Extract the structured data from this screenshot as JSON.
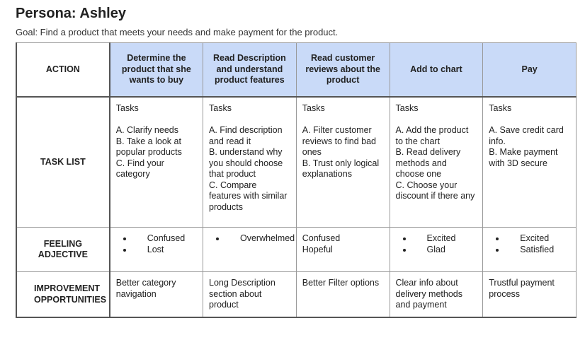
{
  "title": "Persona: Ashley",
  "goal": "Goal: Find a product that meets your needs and make payment for the product.",
  "table": {
    "header": [
      "ACTION",
      "Determine the product that she wants to buy",
      "Read Description and understand product features",
      "Read customer reviews about the product",
      "Add to chart",
      "Pay"
    ],
    "rows": [
      {
        "label": "TASK LIST",
        "cells": [
          {
            "heading": "Tasks",
            "items": [
              "A. Clarify needs",
              "B. Take a look at popular products",
              "C. Find your category"
            ]
          },
          {
            "heading": "Tasks",
            "items": [
              "A. Find description and read it",
              "B. understand why you should choose that product",
              "C. Compare features with similar products"
            ]
          },
          {
            "heading": "Tasks",
            "items": [
              "A. Filter customer reviews to find bad ones",
              "B. Trust only logical explanations"
            ]
          },
          {
            "heading": "Tasks",
            "items": [
              "A. Add the product to the chart",
              "B. Read delivery methods and choose one",
              "C. Choose your discount if there any"
            ]
          },
          {
            "heading": "Tasks",
            "items": [
              "A. Save credit card info.",
              "B. Make payment with 3D secure"
            ]
          }
        ]
      },
      {
        "label": "FEELING ADJECTIVE",
        "cells": [
          {
            "bullets": [
              "Confused",
              "Lost"
            ]
          },
          {
            "bullets": [
              "Overwhelmed"
            ]
          },
          {
            "lines": [
              "Confused",
              "Hopeful"
            ]
          },
          {
            "bullets": [
              "Excited",
              "Glad"
            ]
          },
          {
            "bullets": [
              "Excited",
              "Satisfied"
            ]
          }
        ]
      },
      {
        "label": "IMPROVEMENT OPPORTUNITIES",
        "cells": [
          {
            "text": "Better category navigation"
          },
          {
            "text": "Long Description section about product"
          },
          {
            "text": "Better Filter options"
          },
          {
            "text": "Clear info about delivery methods and payment"
          },
          {
            "text": "Trustful payment process"
          }
        ]
      }
    ]
  }
}
